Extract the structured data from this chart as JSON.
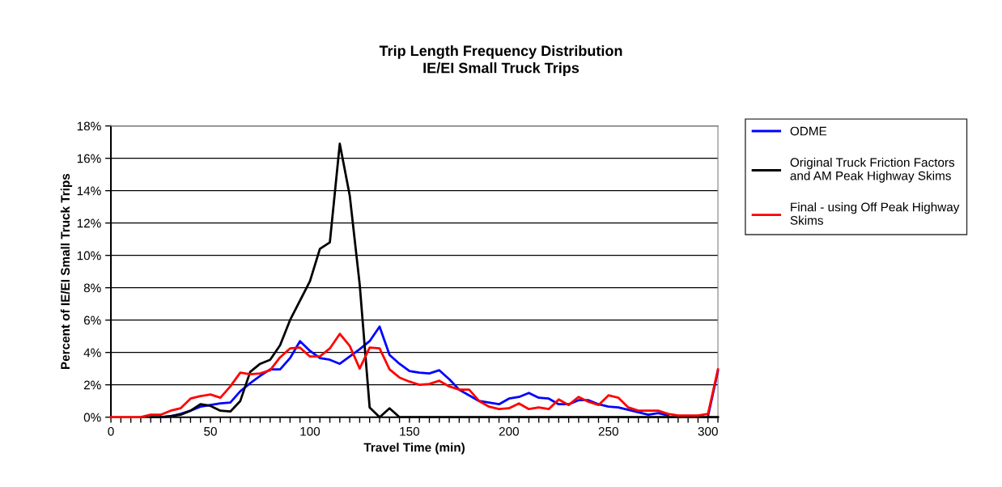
{
  "chart_data": {
    "type": "line",
    "title": "Trip Length Frequency Distribution",
    "subtitle": "IE/EI Small Truck Trips",
    "xlabel": "Travel Time (min)",
    "ylabel": "Percent of IE/EI Small Truck Trips",
    "x": [
      0,
      5,
      10,
      15,
      20,
      25,
      30,
      35,
      40,
      45,
      50,
      55,
      60,
      65,
      70,
      75,
      80,
      85,
      90,
      95,
      100,
      105,
      110,
      115,
      120,
      125,
      130,
      135,
      140,
      145,
      150,
      155,
      160,
      165,
      170,
      175,
      180,
      185,
      190,
      195,
      200,
      205,
      210,
      215,
      220,
      225,
      230,
      235,
      240,
      245,
      250,
      255,
      260,
      265,
      270,
      275,
      280,
      285,
      290,
      295,
      300,
      305
    ],
    "series": [
      {
        "name": "ODME",
        "color": "#0000ff",
        "values": [
          null,
          null,
          null,
          null,
          null,
          0,
          0.05,
          0.2,
          0.4,
          0.65,
          0.75,
          0.85,
          0.9,
          1.6,
          2.1,
          2.55,
          2.95,
          2.95,
          3.65,
          4.7,
          4.1,
          3.65,
          3.55,
          3.3,
          3.75,
          4.2,
          4.7,
          5.6,
          3.85,
          3.3,
          2.85,
          2.75,
          2.7,
          2.9,
          2.35,
          1.7,
          1.35,
          1.0,
          0.9,
          0.8,
          1.15,
          1.25,
          1.5,
          1.2,
          1.15,
          0.8,
          0.8,
          1.05,
          1.05,
          0.8,
          0.65,
          0.6,
          0.45,
          0.3,
          0.15,
          0.25,
          0.1,
          null,
          null,
          null,
          0.05,
          2.85
        ]
      },
      {
        "name": "Original Truck Friction Factors\nand AM Peak Highway Skims",
        "color": "#000000",
        "values": [
          null,
          null,
          null,
          null,
          0,
          0,
          0.07,
          0.15,
          0.4,
          0.8,
          0.7,
          0.4,
          0.35,
          1.0,
          2.8,
          3.3,
          3.55,
          4.45,
          6.0,
          7.2,
          8.4,
          10.4,
          10.8,
          16.9,
          13.7,
          8.2,
          0.6,
          0,
          0.55,
          0,
          0,
          0,
          0,
          0,
          0,
          0,
          0,
          0,
          0,
          0,
          0,
          0,
          0,
          0,
          0,
          0,
          0,
          0,
          0,
          0,
          0,
          0,
          0,
          0,
          0,
          0,
          0,
          0,
          0,
          0,
          0,
          0
        ]
      },
      {
        "name": "Final - using Off Peak Highway\nSkims",
        "color": "#ff0000",
        "values": [
          0,
          0,
          0,
          0,
          0.15,
          0.15,
          0.4,
          0.55,
          1.15,
          1.3,
          1.4,
          1.2,
          1.9,
          2.75,
          2.65,
          2.7,
          2.9,
          3.7,
          4.25,
          4.3,
          3.75,
          3.75,
          4.25,
          5.15,
          4.4,
          3.0,
          4.3,
          4.25,
          2.95,
          2.45,
          2.2,
          2.0,
          2.05,
          2.25,
          1.9,
          1.7,
          1.7,
          1.0,
          0.65,
          0.5,
          0.55,
          0.85,
          0.5,
          0.6,
          0.5,
          1.1,
          0.75,
          1.25,
          0.95,
          0.75,
          1.35,
          1.2,
          0.6,
          0.4,
          0.4,
          0.4,
          0.2,
          0.1,
          0.1,
          0.1,
          0.2,
          2.95
        ]
      }
    ],
    "xlim": [
      0,
      305
    ],
    "xticks": [
      0,
      {
        "value": 5,
        "label": null
      },
      {
        "value": 10,
        "label": null
      },
      {
        "value": 15,
        "label": null
      },
      {
        "value": 20,
        "label": null
      },
      {
        "value": 25,
        "label": null
      },
      {
        "value": 30,
        "label": null
      },
      {
        "value": 35,
        "label": null
      },
      {
        "value": 40,
        "label": null
      },
      {
        "value": 45,
        "label": null
      },
      50,
      {
        "value": 55,
        "label": null
      },
      {
        "value": 60,
        "label": null
      },
      {
        "value": 65,
        "label": null
      },
      {
        "value": 70,
        "label": null
      },
      {
        "value": 75,
        "label": null
      },
      {
        "value": 80,
        "label": null
      },
      {
        "value": 85,
        "label": null
      },
      {
        "value": 90,
        "label": null
      },
      {
        "value": 95,
        "label": null
      },
      100,
      {
        "value": 105,
        "label": null
      },
      {
        "value": 110,
        "label": null
      },
      {
        "value": 115,
        "label": null
      },
      {
        "value": 120,
        "label": null
      },
      {
        "value": 125,
        "label": null
      },
      {
        "value": 130,
        "label": null
      },
      {
        "value": 135,
        "label": null
      },
      {
        "value": 140,
        "label": null
      },
      {
        "value": 145,
        "label": null
      },
      150,
      {
        "value": 155,
        "label": null
      },
      {
        "value": 160,
        "label": null
      },
      {
        "value": 165,
        "label": null
      },
      {
        "value": 170,
        "label": null
      },
      {
        "value": 175,
        "label": null
      },
      {
        "value": 180,
        "label": null
      },
      {
        "value": 185,
        "label": null
      },
      {
        "value": 190,
        "label": null
      },
      {
        "value": 195,
        "label": null
      },
      200,
      {
        "value": 205,
        "label": null
      },
      {
        "value": 210,
        "label": null
      },
      {
        "value": 215,
        "label": null
      },
      {
        "value": 220,
        "label": null
      },
      {
        "value": 225,
        "label": null
      },
      {
        "value": 230,
        "label": null
      },
      {
        "value": 235,
        "label": null
      },
      {
        "value": 240,
        "label": null
      },
      {
        "value": 245,
        "label": null
      },
      250,
      {
        "value": 255,
        "label": null
      },
      {
        "value": 260,
        "label": null
      },
      {
        "value": 265,
        "label": null
      },
      {
        "value": 270,
        "label": null
      },
      {
        "value": 275,
        "label": null
      },
      {
        "value": 280,
        "label": null
      },
      {
        "value": 285,
        "label": null
      },
      {
        "value": 290,
        "label": null
      },
      {
        "value": 295,
        "label": null
      },
      300,
      {
        "value": 305,
        "label": null
      }
    ],
    "ylim": [
      0,
      18
    ],
    "yticks": [
      {
        "value": 0,
        "label": "0%"
      },
      {
        "value": 2,
        "label": "2%"
      },
      {
        "value": 4,
        "label": "4%"
      },
      {
        "value": 6,
        "label": "6%"
      },
      {
        "value": 8,
        "label": "8%"
      },
      {
        "value": 10,
        "label": "10%"
      },
      {
        "value": 12,
        "label": "12%"
      },
      {
        "value": 14,
        "label": "14%"
      },
      {
        "value": 16,
        "label": "16%"
      },
      {
        "value": 18,
        "label": "18%"
      }
    ],
    "grid": "y",
    "legend": "right",
    "marker": "none",
    "line_style": "solid"
  }
}
